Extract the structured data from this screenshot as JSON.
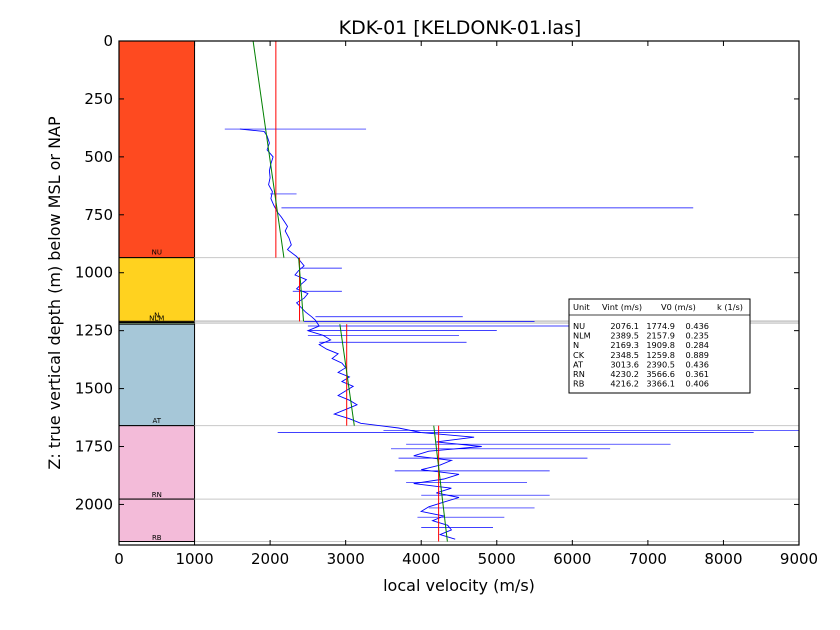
{
  "chart_data": {
    "type": "line",
    "title": "KDK-01 [KELDONK-01.las]",
    "xlabel": "local velocity (m/s)",
    "ylabel": "Z: true vertical depth (m) below MSL or NAP",
    "xlim": [
      0,
      9000
    ],
    "ylim": [
      0,
      2175
    ],
    "y_inverted": true,
    "x_ticks": [
      0,
      1000,
      2000,
      3000,
      4000,
      5000,
      6000,
      7000,
      8000,
      9000
    ],
    "y_ticks": [
      0,
      250,
      500,
      750,
      1000,
      1250,
      1500,
      1750,
      2000
    ],
    "grid": false,
    "units_column": {
      "x_range": [
        0,
        1000
      ],
      "units": [
        {
          "name": "NU",
          "top": 0,
          "base": 935,
          "color": "#fe4a20"
        },
        {
          "name": "NLM",
          "top": 935,
          "base": 1210,
          "color": "#ffd21f"
        },
        {
          "name": "N",
          "top": 1210,
          "base": 1215,
          "color": "#ffb81f"
        },
        {
          "name": "CK",
          "top": 1215,
          "base": 1222,
          "color": "#b3dba0"
        },
        {
          "name": "AT",
          "top": 1222,
          "base": 1660,
          "color": "#a6c7d8"
        },
        {
          "name": "RN",
          "top": 1660,
          "base": 1977,
          "color": "#f3bbd9"
        },
        {
          "name": "RB",
          "top": 1977,
          "base": 2160,
          "color": "#f3bbd9"
        }
      ]
    },
    "unit_labels": [
      {
        "text": "NU",
        "depth": 908
      },
      {
        "text": "NLM",
        "depth": 1193
      },
      {
        "text": "N",
        "depth": 1180
      },
      {
        "text": "AT",
        "depth": 1636
      },
      {
        "text": "RN",
        "depth": 1955
      },
      {
        "text": "RB",
        "depth": 2140
      }
    ],
    "boundaries": [
      935,
      1208,
      1212,
      1218,
      1660,
      1977,
      2160
    ],
    "series": [
      {
        "kind": "velocity_log",
        "color": "#0000ff",
        "points": [
          [
            1600,
            380
          ],
          [
            1920,
            390
          ],
          [
            1960,
            410
          ],
          [
            1990,
            440
          ],
          [
            1960,
            470
          ],
          [
            2040,
            500
          ],
          [
            2010,
            530
          ],
          [
            1990,
            560
          ],
          [
            2000,
            590
          ],
          [
            1980,
            620
          ],
          [
            2030,
            650
          ],
          [
            2010,
            680
          ],
          [
            2050,
            710
          ],
          [
            2100,
            740
          ],
          [
            2150,
            760
          ],
          [
            2190,
            780
          ],
          [
            2230,
            800
          ],
          [
            2200,
            820
          ],
          [
            2250,
            850
          ],
          [
            2280,
            880
          ],
          [
            2230,
            900
          ],
          [
            2350,
            930
          ],
          [
            2400,
            950
          ],
          [
            2450,
            970
          ],
          [
            2380,
            990
          ],
          [
            2330,
            1010
          ],
          [
            2480,
            1030
          ],
          [
            2410,
            1050
          ],
          [
            2350,
            1070
          ],
          [
            2500,
            1090
          ],
          [
            2450,
            1110
          ],
          [
            2350,
            1130
          ],
          [
            2410,
            1150
          ],
          [
            2470,
            1170
          ],
          [
            2550,
            1190
          ],
          [
            2600,
            1205
          ],
          [
            2650,
            1230
          ],
          [
            2500,
            1250
          ],
          [
            2700,
            1270
          ],
          [
            2800,
            1290
          ],
          [
            2650,
            1310
          ],
          [
            2750,
            1330
          ],
          [
            2900,
            1350
          ],
          [
            2820,
            1370
          ],
          [
            2950,
            1390
          ],
          [
            3000,
            1410
          ],
          [
            2900,
            1430
          ],
          [
            3050,
            1450
          ],
          [
            2950,
            1470
          ],
          [
            3100,
            1490
          ],
          [
            3000,
            1510
          ],
          [
            2900,
            1530
          ],
          [
            3050,
            1550
          ],
          [
            3150,
            1570
          ],
          [
            3000,
            1590
          ],
          [
            2850,
            1610
          ],
          [
            3050,
            1630
          ],
          [
            3200,
            1650
          ],
          [
            3700,
            1670
          ],
          [
            4000,
            1690
          ],
          [
            4700,
            1710
          ],
          [
            4200,
            1730
          ],
          [
            4800,
            1750
          ],
          [
            4100,
            1770
          ],
          [
            3900,
            1790
          ],
          [
            4400,
            1810
          ],
          [
            4250,
            1830
          ],
          [
            4000,
            1850
          ],
          [
            4500,
            1870
          ],
          [
            4300,
            1890
          ],
          [
            3900,
            1910
          ],
          [
            4400,
            1930
          ],
          [
            4200,
            1950
          ],
          [
            4500,
            1970
          ],
          [
            4300,
            1990
          ],
          [
            4100,
            2010
          ],
          [
            4000,
            2030
          ],
          [
            4300,
            2050
          ],
          [
            4150,
            2070
          ],
          [
            4350,
            2090
          ],
          [
            4400,
            2110
          ],
          [
            4250,
            2130
          ],
          [
            4450,
            2150
          ]
        ],
        "spikes": [
          [
            380,
            1400,
            3270
          ],
          [
            660,
            2000,
            2350
          ],
          [
            720,
            2150,
            7600
          ],
          [
            980,
            2400,
            2950
          ],
          [
            1080,
            2300,
            2950
          ],
          [
            1190,
            2600,
            4550
          ],
          [
            1210,
            2450,
            5500
          ],
          [
            1230,
            2500,
            6650
          ],
          [
            1250,
            2500,
            5000
          ],
          [
            1270,
            2500,
            4500
          ],
          [
            1300,
            2650,
            4600
          ],
          [
            1680,
            3500,
            9000
          ],
          [
            1690,
            2100,
            8400
          ],
          [
            1740,
            3800,
            7300
          ],
          [
            1760,
            3600,
            6500
          ],
          [
            1800,
            3700,
            6200
          ],
          [
            1855,
            3650,
            5700
          ],
          [
            1905,
            3800,
            5400
          ],
          [
            1960,
            4000,
            5700
          ],
          [
            2015,
            4100,
            5500
          ],
          [
            2055,
            3950,
            5100
          ],
          [
            2100,
            4000,
            4950
          ]
        ]
      },
      {
        "kind": "interval_velocity",
        "color": "#ff0000",
        "segments": [
          {
            "unit": "NU",
            "v": 2076.1,
            "top": 0,
            "base": 935
          },
          {
            "unit": "NLM",
            "v": 2389.5,
            "top": 935,
            "base": 1210
          },
          {
            "unit": "AT",
            "v": 3013.6,
            "top": 1222,
            "base": 1660
          },
          {
            "unit": "RN",
            "v": 4230.2,
            "top": 1660,
            "base": 2160
          }
        ]
      },
      {
        "kind": "v0_k_trend",
        "color": "#008000",
        "segments": [
          {
            "unit": "NU",
            "v0": 1774.9,
            "k": 0.436,
            "top": 0,
            "base": 935
          },
          {
            "unit": "NLM",
            "v0": 2157.9,
            "k": 0.235,
            "top": 935,
            "base": 1210
          },
          {
            "unit": "AT",
            "v0": 2390.5,
            "k": 0.436,
            "top": 1222,
            "base": 1660
          },
          {
            "unit": "RN",
            "v0": 3566.6,
            "k": 0.361,
            "top": 1660,
            "base": 2160
          }
        ]
      }
    ],
    "table": {
      "headers": [
        "Unit",
        "Vint (m/s)",
        "V0 (m/s)",
        "k (1/s)"
      ],
      "rows": [
        [
          "NU",
          "2076.1",
          "1774.9",
          "0.436"
        ],
        [
          "NLM",
          "2389.5",
          "2157.9",
          "0.235"
        ],
        [
          "N",
          "2169.3",
          "1909.8",
          "0.284"
        ],
        [
          "CK",
          "2348.5",
          "1259.8",
          "0.889"
        ],
        [
          "AT",
          "3013.6",
          "2390.5",
          "0.436"
        ],
        [
          "RN",
          "4230.2",
          "3566.6",
          "0.361"
        ],
        [
          "RB",
          "4216.2",
          "3366.1",
          "0.406"
        ]
      ]
    }
  }
}
